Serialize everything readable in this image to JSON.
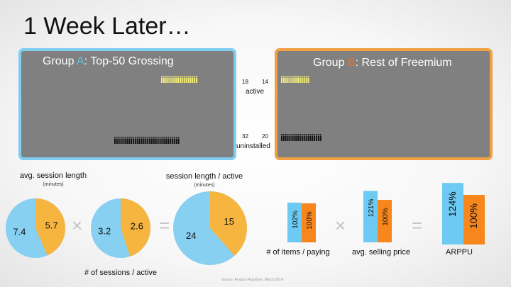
{
  "title": "1 Week Later…",
  "group_a": {
    "prefix": "Group ",
    "letter": "A",
    "suffix": ":  Top-50 Grossing"
  },
  "group_b": {
    "prefix": "Group ",
    "letter": "B",
    "suffix": ":  Rest of Freemium"
  },
  "colors": {
    "group_a": "#7fcdf0",
    "group_b": "#f0a040",
    "pie_a": "#87d0f2",
    "pie_b": "#f5b53f",
    "bar_a": "#6dcaf2",
    "bar_b": "#f7861d"
  },
  "icons": {
    "person": "person-icon"
  },
  "people_rows": {
    "active_a": "iiiiiiiiiiiiiiiiii",
    "active_b": "iiiiiiiiiiiiii",
    "uninstalled_a": "iiiiiiiiiiiiiiiiiiiiiiiiiiiiiiii",
    "uninstalled_b": "iiiiiiiiiiiiiiiiiiii"
  },
  "counts": {
    "active_a": "18",
    "active_b": "14",
    "active_label": "active",
    "uninstalled_a": "32",
    "uninstalled_b": "20",
    "uninstalled_label": "uninstalled"
  },
  "operators": {
    "times": "×",
    "equals": "="
  },
  "pie_labels": {
    "avg_session": {
      "title": "avg. session length",
      "unit": "(minutes)"
    },
    "sessions": {
      "title": "# of sessions / active"
    },
    "session_active": {
      "title": "session length / active",
      "unit": "(minutes)"
    }
  },
  "bar_labels": {
    "items": "# of items / paying",
    "price": "avg. selling price",
    "arppu": "ARPPU"
  },
  "source": "Source:  Amazon Appstore, March 2014",
  "chart_data": [
    {
      "type": "pie",
      "title": "avg. session length",
      "subtitle": "(minutes)",
      "slices": [
        {
          "value": 5.7,
          "label": "5.7",
          "group": "B"
        },
        {
          "value": 7.4,
          "label": "7.4",
          "group": "A"
        }
      ]
    },
    {
      "type": "pie",
      "title": "# of sessions / active",
      "slices": [
        {
          "value": 2.6,
          "label": "2.6",
          "group": "B"
        },
        {
          "value": 3.2,
          "label": "3.2",
          "group": "A"
        }
      ]
    },
    {
      "type": "pie",
      "title": "session length / active",
      "subtitle": "(minutes)",
      "slices": [
        {
          "value": 15,
          "label": "15",
          "group": "B"
        },
        {
          "value": 24,
          "label": "24",
          "group": "A"
        }
      ]
    },
    {
      "type": "bar",
      "title": "# of items / paying",
      "series": [
        {
          "group": "A",
          "value": 102,
          "label": "102%"
        },
        {
          "group": "B",
          "value": 100,
          "label": "100%"
        }
      ]
    },
    {
      "type": "bar",
      "title": "avg. selling price",
      "series": [
        {
          "group": "A",
          "value": 121,
          "label": "121%"
        },
        {
          "group": "B",
          "value": 100,
          "label": "100%"
        }
      ]
    },
    {
      "type": "bar",
      "title": "ARPPU",
      "series": [
        {
          "group": "A",
          "value": 124,
          "label": "124%"
        },
        {
          "group": "B",
          "value": 100,
          "label": "100%"
        }
      ]
    }
  ]
}
